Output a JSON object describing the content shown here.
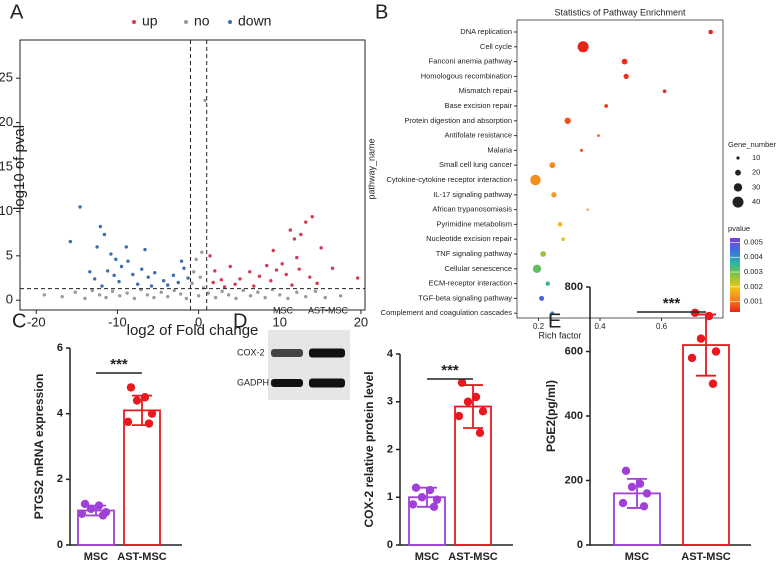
{
  "chart_data": [
    {
      "panel": "A",
      "type": "scatter",
      "x_label": "log2 of Fold change",
      "y_label": "-log10 of pval",
      "series": [
        {
          "name": "up",
          "color": "#d63a50",
          "x": [
            14.0,
            13.2,
            11.3,
            11.8,
            12.6,
            15.1,
            19.6,
            16.5,
            12.1,
            10.3,
            9.6,
            8.4,
            7.5,
            6.3,
            5.1,
            3.9,
            2.8,
            2.0,
            1.4,
            1.8,
            4.5,
            8.9,
            10.8,
            13.7,
            11.5,
            6.8,
            3.2,
            9.2,
            12.4,
            14.6
          ],
          "values": [
            9.4,
            8.8,
            7.9,
            6.9,
            7.4,
            5.9,
            2.5,
            3.6,
            4.8,
            4.1,
            3.4,
            3.9,
            2.7,
            3.2,
            2.4,
            3.8,
            2.3,
            3.3,
            5.0,
            2.0,
            1.8,
            2.2,
            2.9,
            2.6,
            1.7,
            1.6,
            1.5,
            5.6,
            3.5,
            1.9
          ]
        },
        {
          "name": "no",
          "color": "#9a9a9a",
          "x": [
            -16.8,
            -15.2,
            -14.0,
            -13.1,
            -12.2,
            -11.4,
            -10.6,
            -9.7,
            -8.8,
            -7.9,
            -7.1,
            -6.3,
            -5.5,
            -4.6,
            -3.8,
            -3.0,
            -2.2,
            -1.5,
            -0.8,
            -0.6,
            -0.3,
            0.0,
            0.2,
            0.4,
            0.6,
            0.8,
            1.2,
            2.1,
            2.9,
            3.7,
            4.6,
            5.5,
            6.4,
            7.3,
            8.2,
            9.1,
            10.0,
            11.0,
            12.1,
            13.2,
            14.4,
            15.6,
            -19.0,
            17.5
          ],
          "values": [
            0.4,
            0.9,
            0.2,
            1.1,
            0.6,
            0.3,
            1.0,
            0.5,
            0.8,
            0.2,
            1.2,
            0.6,
            0.3,
            0.9,
            0.4,
            1.1,
            0.7,
            0.2,
            1.9,
            3.2,
            4.6,
            0.5,
            2.6,
            5.4,
            1.4,
            22.5,
            0.8,
            0.3,
            1.0,
            0.6,
            0.2,
            1.1,
            0.5,
            0.9,
            0.3,
            1.2,
            0.6,
            0.2,
            0.9,
            0.4,
            1.0,
            0.3,
            0.6,
            0.5
          ]
        },
        {
          "name": "down",
          "color": "#3c6db0",
          "x": [
            -14.6,
            -15.8,
            -12.1,
            -11.6,
            -12.5,
            -10.8,
            -10.2,
            -9.5,
            -8.7,
            -11.2,
            -8.1,
            -7.0,
            -6.2,
            -5.4,
            -4.3,
            -3.1,
            -2.5,
            -1.8,
            -9.8,
            -12.8,
            -7.5,
            -5.8,
            -3.8,
            -11.9,
            -2.1,
            -1.3,
            -6.6,
            -8.9,
            -13.4,
            -10.4
          ],
          "values": [
            10.5,
            6.6,
            8.3,
            7.4,
            6.0,
            5.2,
            4.6,
            3.8,
            4.4,
            3.3,
            2.9,
            3.5,
            2.6,
            3.1,
            2.2,
            2.8,
            2.0,
            3.6,
            2.1,
            2.4,
            1.8,
            1.6,
            1.7,
            1.6,
            4.4,
            2.5,
            5.7,
            6.0,
            3.2,
            2.8
          ]
        }
      ],
      "xlim": [
        -22,
        20.5
      ],
      "ylim": [
        -1.1,
        29.3
      ],
      "xticks": [
        -20,
        -10,
        0,
        10,
        20
      ],
      "yticks": [
        0,
        5,
        10,
        15,
        20,
        25
      ],
      "thresholds": {
        "x": [
          -1,
          1
        ],
        "y": 1.3
      }
    },
    {
      "panel": "B",
      "type": "bubble",
      "title": "Statistics of Pathway Enrichment",
      "x_label": "Rich factor",
      "y_label": "pathway_name",
      "categories": [
        "DNA replication",
        "Cell cycle",
        "Fanconi anemia pathway",
        "Homologous recombination",
        "Mismatch repair",
        "Base excision repair",
        "Protein digestion and absorption",
        "Antifolate resistance",
        "Malaria",
        "Small cell lung cancer",
        "Cytokine-cytokine receptor interaction",
        "IL-17 signaling pathway",
        "African trypanosomiasis",
        "Pyrimidine metabolism",
        "Nucleotide excision repair",
        "TNF signaling pathway",
        "Cellular senescence",
        "ECM-receptor interaction",
        "TGF-beta signaling pathway",
        "Complement and coagulation cascades"
      ],
      "values": [
        0.76,
        0.345,
        0.48,
        0.485,
        0.61,
        0.42,
        0.295,
        0.395,
        0.34,
        0.245,
        0.19,
        0.25,
        0.36,
        0.27,
        0.28,
        0.215,
        0.195,
        0.23,
        0.21,
        0.245
      ],
      "sizes": [
        15,
        40,
        20,
        18,
        12,
        12,
        22,
        8,
        9,
        20,
        38,
        18,
        7,
        15,
        12,
        20,
        30,
        15,
        17,
        12
      ],
      "pvalue": [
        0.0003,
        0.0003,
        0.0004,
        0.0004,
        0.0004,
        0.0005,
        0.0007,
        0.0008,
        0.0006,
        0.0012,
        0.0013,
        0.0014,
        0.0015,
        0.0018,
        0.0021,
        0.0026,
        0.0031,
        0.0034,
        0.0047,
        0.0044
      ],
      "xlim": [
        0.13,
        0.8
      ],
      "xticks": [
        0.2,
        0.4,
        0.6
      ],
      "size_legend": {
        "title": "Gene_number",
        "values": [
          10,
          20,
          30,
          40
        ]
      },
      "color_legend": {
        "title": "pvalue",
        "range": [
          0.0003,
          0.0053
        ],
        "ticks": [
          0.005,
          0.004,
          0.003,
          0.002,
          0.001
        ],
        "colors": [
          "#e8231a",
          "#f5821f",
          "#f2c318",
          "#7ec63b",
          "#2bb3a8",
          "#3d6fe0",
          "#7a3fe0"
        ]
      }
    },
    {
      "panel": "C",
      "type": "bar",
      "y_label": "PTGS2 mRNA expression",
      "categories": [
        "MSC",
        "AST-MSC"
      ],
      "values": [
        1.05,
        4.1
      ],
      "errors": [
        0.15,
        0.45
      ],
      "points": [
        [
          1.25,
          1.2,
          1.1,
          1.0,
          0.95,
          0.9
        ],
        [
          4.8,
          4.5,
          4.4,
          4.0,
          3.75,
          3.7
        ]
      ],
      "colors": [
        "#a040d8",
        "#e8191e"
      ],
      "ylim": [
        0,
        6
      ],
      "yticks": [
        0,
        2,
        4,
        6
      ],
      "annotation": "***"
    },
    {
      "panel": "D",
      "type": "bar",
      "y_label": "COX-2 relative protein level",
      "categories": [
        "MSC",
        "AST-MSC"
      ],
      "values": [
        1.0,
        2.9
      ],
      "errors": [
        0.2,
        0.45
      ],
      "points": [
        [
          1.2,
          1.15,
          1.0,
          0.95,
          0.85,
          0.8
        ],
        [
          3.4,
          3.1,
          3.0,
          2.8,
          2.7,
          2.35
        ]
      ],
      "colors": [
        "#a040d8",
        "#e8191e"
      ],
      "ylim": [
        0,
        4
      ],
      "yticks": [
        0,
        1,
        2,
        3,
        4
      ],
      "annotation": "***",
      "blot": {
        "lanes": [
          "MSC",
          "AST-MSC"
        ],
        "bands": [
          "COX-2",
          "GADPH"
        ]
      }
    },
    {
      "panel": "E",
      "type": "bar",
      "y_label": "PGE2(pg/ml)",
      "categories": [
        "MSC",
        "AST-MSC"
      ],
      "values": [
        160,
        620
      ],
      "errors": [
        45,
        95
      ],
      "points": [
        [
          230,
          190,
          180,
          160,
          130,
          120
        ],
        [
          720,
          710,
          640,
          600,
          580,
          500
        ]
      ],
      "colors": [
        "#a040d8",
        "#e8191e"
      ],
      "ylim": [
        0,
        800
      ],
      "yticks": [
        0,
        200,
        400,
        600,
        800
      ],
      "annotation": "***"
    }
  ]
}
